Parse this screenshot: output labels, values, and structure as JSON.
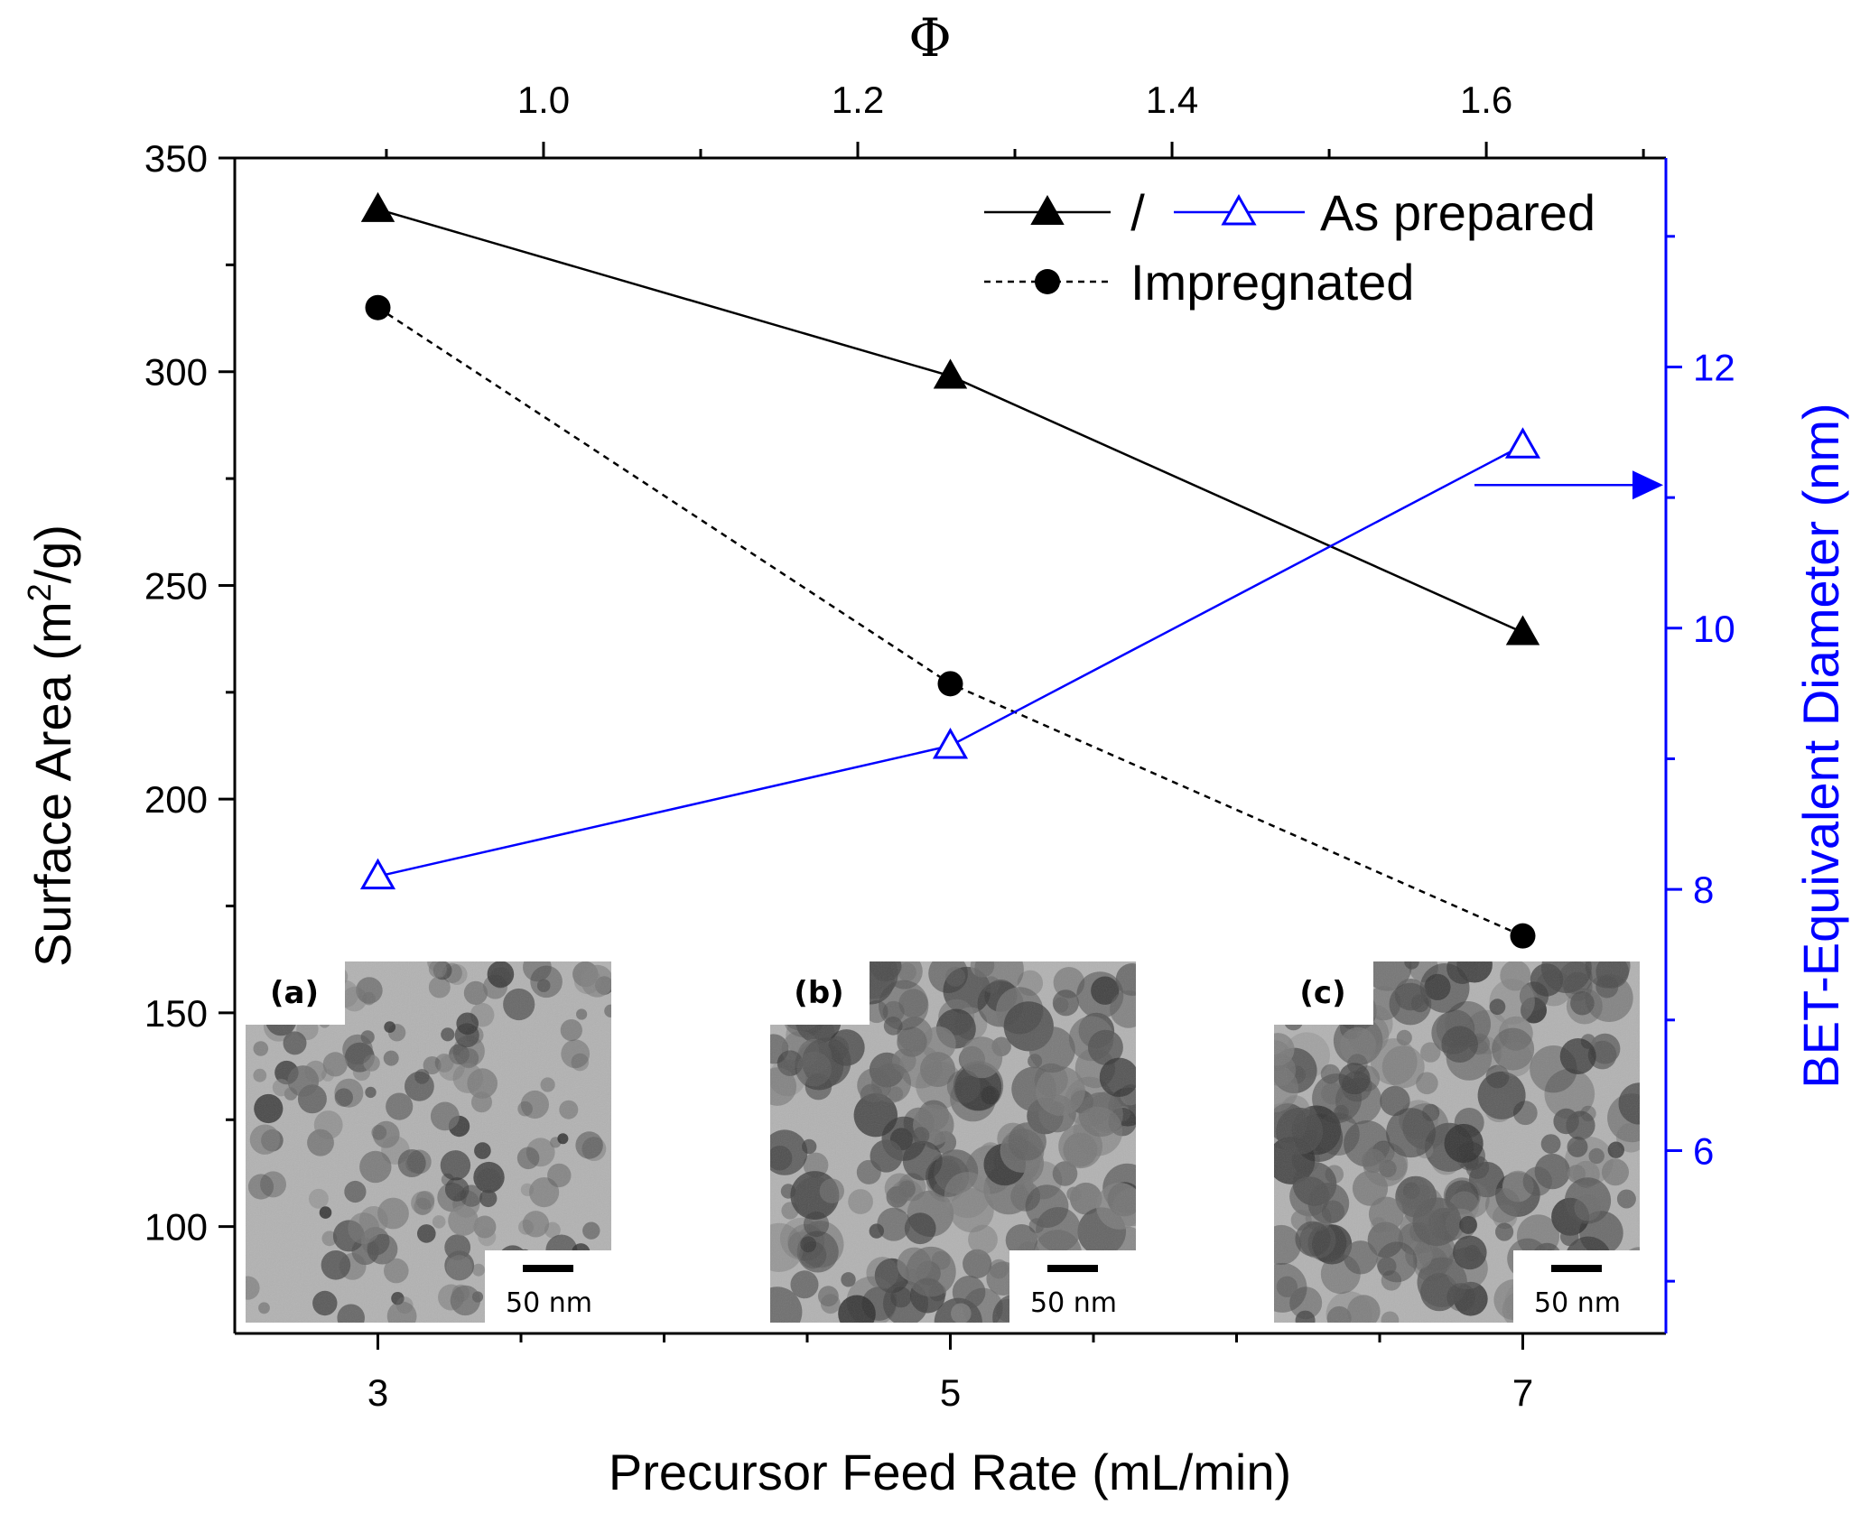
{
  "chart_data": {
    "type": "line",
    "x_axis": {
      "label": "Precursor Feed Rate (mL/min)",
      "range": [
        2.5,
        7.5
      ],
      "ticks": [
        3,
        5,
        7
      ],
      "minor_ticks": [
        3.5,
        4,
        4.5,
        5.5,
        6,
        6.5
      ]
    },
    "top_axis": {
      "label": "Φ",
      "range": [
        0.8035,
        1.7143
      ],
      "ticks": [
        1.0,
        1.2,
        1.4,
        1.6
      ],
      "tick_labels": [
        "1.0",
        "1.2",
        "1.4",
        "1.6"
      ],
      "minor_ticks": [
        0.9,
        1.1,
        1.3,
        1.5,
        1.7
      ]
    },
    "y_left": {
      "label_main": "Surface Area (m",
      "label_sup": "2",
      "label_end": "/g)",
      "range": [
        75,
        350
      ],
      "ticks": [
        100,
        150,
        200,
        250,
        300,
        350
      ],
      "minor_ticks": [
        125,
        175,
        225,
        275,
        325
      ]
    },
    "y_right": {
      "label": "BET-Equivalent Diameter (nm)",
      "range": [
        4.6,
        13.6
      ],
      "ticks": [
        6,
        8,
        10,
        12
      ],
      "minor_ticks": [
        5,
        7,
        9,
        11,
        13
      ],
      "color": "#0000ff"
    },
    "series": [
      {
        "name": "As prepared",
        "axis": "left",
        "marker": "filled-triangle",
        "line": "solid",
        "color": "#000000",
        "x": [
          3,
          5,
          7
        ],
        "y": [
          338,
          299,
          239
        ]
      },
      {
        "name": "Impregnated",
        "axis": "left",
        "marker": "filled-circle",
        "line": "dashed",
        "color": "#000000",
        "x": [
          3,
          5,
          7
        ],
        "y": [
          315,
          227,
          168
        ]
      },
      {
        "name": "As prepared",
        "axis": "right",
        "marker": "open-triangle",
        "line": "solid",
        "color": "#0000ff",
        "x": [
          3,
          5,
          7
        ],
        "y": [
          8.1,
          9.1,
          11.4
        ]
      }
    ],
    "legend": {
      "placement": "top-right",
      "entries": [
        {
          "separator": "/",
          "label": "As prepared"
        },
        {
          "label": "Impregnated"
        }
      ]
    },
    "insets": [
      {
        "label": "(a)",
        "scale_bar": "50 nm"
      },
      {
        "label": "(b)",
        "scale_bar": "50 nm"
      },
      {
        "label": "(c)",
        "scale_bar": "50 nm"
      }
    ]
  }
}
